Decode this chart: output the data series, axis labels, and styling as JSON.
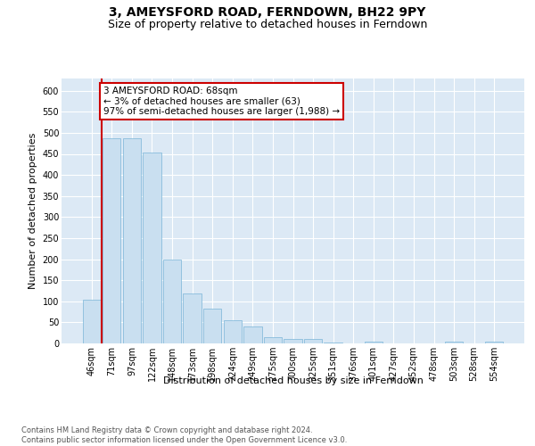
{
  "title": "3, AMEYSFORD ROAD, FERNDOWN, BH22 9PY",
  "subtitle": "Size of property relative to detached houses in Ferndown",
  "xlabel": "Distribution of detached houses by size in Ferndown",
  "ylabel": "Number of detached properties",
  "bins": [
    "46sqm",
    "71sqm",
    "97sqm",
    "122sqm",
    "148sqm",
    "173sqm",
    "198sqm",
    "224sqm",
    "249sqm",
    "275sqm",
    "300sqm",
    "325sqm",
    "351sqm",
    "376sqm",
    "401sqm",
    "427sqm",
    "452sqm",
    "478sqm",
    "503sqm",
    "528sqm",
    "554sqm"
  ],
  "values": [
    103,
    487,
    487,
    453,
    200,
    118,
    82,
    55,
    40,
    14,
    10,
    10,
    3,
    0,
    5,
    0,
    0,
    0,
    5,
    0,
    5
  ],
  "bar_color": "#c9dff0",
  "bar_edge_color": "#7ab5d8",
  "highlight_color": "#cc0000",
  "red_line_x": 0.5,
  "annotation_text": "3 AMEYSFORD ROAD: 68sqm\n← 3% of detached houses are smaller (63)\n97% of semi-detached houses are larger (1,988) →",
  "annotation_box_color": "#ffffff",
  "annotation_box_edge": "#cc0000",
  "ylim_max": 630,
  "yticks": [
    0,
    50,
    100,
    150,
    200,
    250,
    300,
    350,
    400,
    450,
    500,
    550,
    600
  ],
  "footer": "Contains HM Land Registry data © Crown copyright and database right 2024.\nContains public sector information licensed under the Open Government Licence v3.0.",
  "plot_bg_color": "#dce9f5",
  "title_fontsize": 10,
  "subtitle_fontsize": 9,
  "ylabel_fontsize": 8,
  "xlabel_fontsize": 8,
  "tick_fontsize": 7,
  "footer_fontsize": 6,
  "annot_fontsize": 7.5
}
